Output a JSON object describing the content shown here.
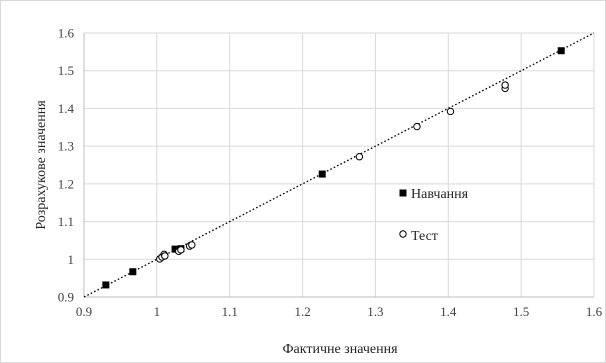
{
  "chart_data": {
    "type": "scatter",
    "xlabel": "Фактичне значення",
    "ylabel": "Розрахукове значення",
    "xlim": [
      0.9,
      1.6
    ],
    "ylim": [
      0.9,
      1.6
    ],
    "x_ticks": [
      "0.9",
      "1",
      "1.1",
      "1.2",
      "1.3",
      "1.4",
      "1.5",
      "1.6"
    ],
    "y_ticks": [
      "0.9",
      "1",
      "1.1",
      "1.2",
      "1.3",
      "1.4",
      "1.5",
      "1.6"
    ],
    "grid": true,
    "trendline": {
      "style": "dotted",
      "x": [
        0.9,
        1.6
      ],
      "y": [
        0.9,
        1.6
      ]
    },
    "legend_position": "right",
    "series": [
      {
        "name": "Навчання",
        "marker": "filled-square",
        "color": "#000000",
        "x": [
          0.93,
          0.967,
          1.025,
          1.033,
          1.227,
          1.555
        ],
        "y": [
          0.932,
          0.967,
          1.027,
          1.028,
          1.226,
          1.553
        ]
      },
      {
        "name": "Тест",
        "marker": "open-circle",
        "color": "#000000",
        "x": [
          1.004,
          1.007,
          1.01,
          1.011,
          1.03,
          1.033,
          1.045,
          1.048,
          1.278,
          1.357,
          1.403,
          1.478,
          1.478
        ],
        "y": [
          1.001,
          1.006,
          1.013,
          1.009,
          1.021,
          1.025,
          1.035,
          1.038,
          1.272,
          1.352,
          1.392,
          1.453,
          1.462
        ]
      }
    ]
  }
}
